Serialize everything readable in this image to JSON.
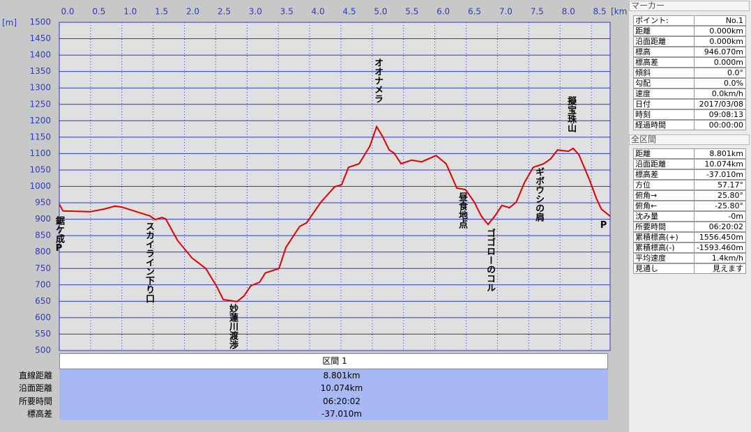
{
  "chart_data": {
    "type": "line",
    "x_unit": "[km]",
    "y_unit": "[m]",
    "x": [
      0,
      0.06,
      0.5,
      0.72,
      0.89,
      1.0,
      1.28,
      1.45,
      1.53,
      1.64,
      1.7,
      1.89,
      2.12,
      2.34,
      2.51,
      2.62,
      2.84,
      2.95,
      3.06,
      3.2,
      3.29,
      3.51,
      3.62,
      3.84,
      3.95,
      4.18,
      4.4,
      4.51,
      4.62,
      4.79,
      4.96,
      5.07,
      5.16,
      5.27,
      5.35,
      5.46,
      5.63,
      5.79,
      6.02,
      6.18,
      6.35,
      6.49,
      6.63,
      6.74,
      6.85,
      6.96,
      7.07,
      7.19,
      7.3,
      7.43,
      7.57,
      7.74,
      7.85,
      7.96,
      8.13,
      8.21,
      8.3,
      8.47,
      8.58,
      8.66,
      8.8
    ],
    "series": [
      {
        "color": "#e00000",
        "values": [
          946,
          925,
          923,
          931,
          940,
          937,
          920,
          910,
          899,
          905,
          901,
          835,
          782,
          750,
          697,
          655,
          649,
          666,
          697,
          708,
          736,
          750,
          814,
          878,
          889,
          952,
          999,
          1005,
          1058,
          1069,
          1122,
          1182,
          1154,
          1111,
          1101,
          1069,
          1080,
          1075,
          1094,
          1069,
          995,
          990,
          952,
          910,
          884,
          910,
          942,
          935,
          952,
          1011,
          1058,
          1069,
          1084,
          1111,
          1107,
          1116,
          1097,
          1020,
          963,
          931,
          909
        ]
      }
    ],
    "xlim": [
      0,
      8.8
    ],
    "ylim": [
      500,
      1500
    ],
    "xticks": [
      {
        "value": 0,
        "label": "0.0"
      },
      0.5,
      {
        "value": 1,
        "label": "1.0"
      },
      1.5,
      {
        "value": 2,
        "label": "2.0"
      },
      2.5,
      {
        "value": 3,
        "label": "3.0"
      },
      3.5,
      {
        "value": 4,
        "label": "4.0"
      },
      4.5,
      {
        "value": 5,
        "label": "5.0"
      },
      5.5,
      {
        "value": 6,
        "label": "6.0"
      },
      6.5,
      {
        "value": 7,
        "label": "7.0"
      },
      7.5,
      {
        "value": 8,
        "label": "8.0"
      },
      8.5
    ],
    "yticks": [
      500,
      550,
      600,
      650,
      700,
      750,
      800,
      850,
      900,
      950,
      1000,
      1050,
      1100,
      1150,
      1200,
      1250,
      1300,
      1350,
      1400,
      1450,
      1500
    ],
    "grid": true,
    "annotations": [
      {
        "text": "鋸ケ成P"
      },
      {
        "text": "スカイライン下り口"
      },
      {
        "text": "妙蓮川渡渉"
      },
      {
        "text": "オオナメラ"
      },
      {
        "text": "昼食地点"
      },
      {
        "text": "ゴゴローのコル"
      },
      {
        "text": "ギボウシの肩"
      },
      {
        "text": "擬宝珠山"
      },
      {
        "text": "P"
      }
    ]
  },
  "section": {
    "header": "区間 1",
    "rows": [
      [
        "直線距離",
        "8.801km"
      ],
      [
        "沿面距離",
        "10.074km"
      ],
      [
        "所要時間",
        "06:20:02"
      ],
      [
        "標高差",
        "-37.010m"
      ]
    ]
  },
  "marker": {
    "title": "マーカー",
    "rows": [
      [
        "ポイント:",
        "No.1"
      ],
      [
        "距離",
        "0.000km"
      ],
      [
        "沿面距離",
        "0.000km"
      ],
      [
        "標高",
        "946.070m"
      ],
      [
        "標高差",
        "0.000m"
      ],
      [
        "傾斜",
        "0.0°"
      ],
      [
        "勾配",
        "0.0%"
      ],
      [
        "速度",
        "0.0km/h"
      ],
      [
        "日付",
        "2017/03/08"
      ],
      [
        "時刻",
        "09:08:13"
      ],
      [
        "経過時間",
        "00:00:00"
      ]
    ]
  },
  "total": {
    "title": "全区間",
    "rows": [
      [
        "距離",
        "8.801km"
      ],
      [
        "沿面距離",
        "10.074km"
      ],
      [
        "標高差",
        "-37.010m"
      ],
      [
        "方位",
        "57.17°"
      ],
      [
        "俯角→",
        "25.80°"
      ],
      [
        "俯角←",
        "-25.80°"
      ],
      [
        "沈み量",
        "-0m"
      ],
      [
        "所要時間",
        "06:20:02"
      ],
      [
        "累積標高(+)",
        "1556.450m"
      ],
      [
        "累積標高(-)",
        "-1593.460m"
      ],
      [
        "平均速度",
        "1.4km/h"
      ],
      [
        "見通し",
        "見えます"
      ]
    ]
  }
}
